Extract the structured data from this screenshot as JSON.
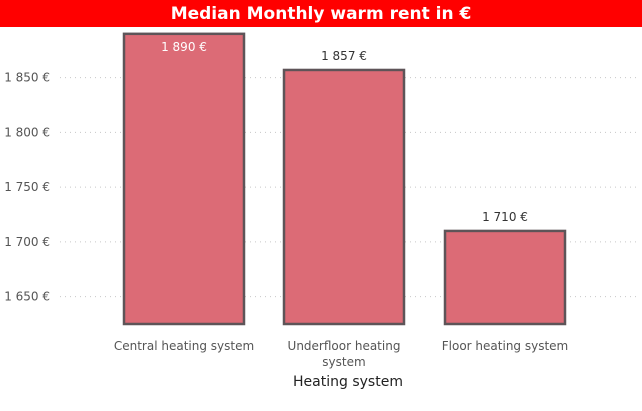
{
  "chart_data": {
    "type": "bar",
    "title": "Median Monthly warm rent in €",
    "xlabel": "Heating system",
    "ylabel": "",
    "categories": [
      "Central heating system",
      "Underfloor heating system",
      "Floor heating system"
    ],
    "values": [
      1890,
      1857,
      1710
    ],
    "data_labels": [
      "1 890 €",
      "1 857 €",
      "1 710 €"
    ],
    "yticks": [
      1650,
      1700,
      1750,
      1800,
      1850
    ],
    "ytick_labels": [
      "1 650 €",
      "1 700 €",
      "1 750 €",
      "1 800 €",
      "1 850 €"
    ],
    "ylim": [
      1625,
      1892
    ],
    "grid": true,
    "colors": {
      "bar": "#dc6b76",
      "bar_border": "#5e5458",
      "title_bg": "#ff0000"
    }
  }
}
